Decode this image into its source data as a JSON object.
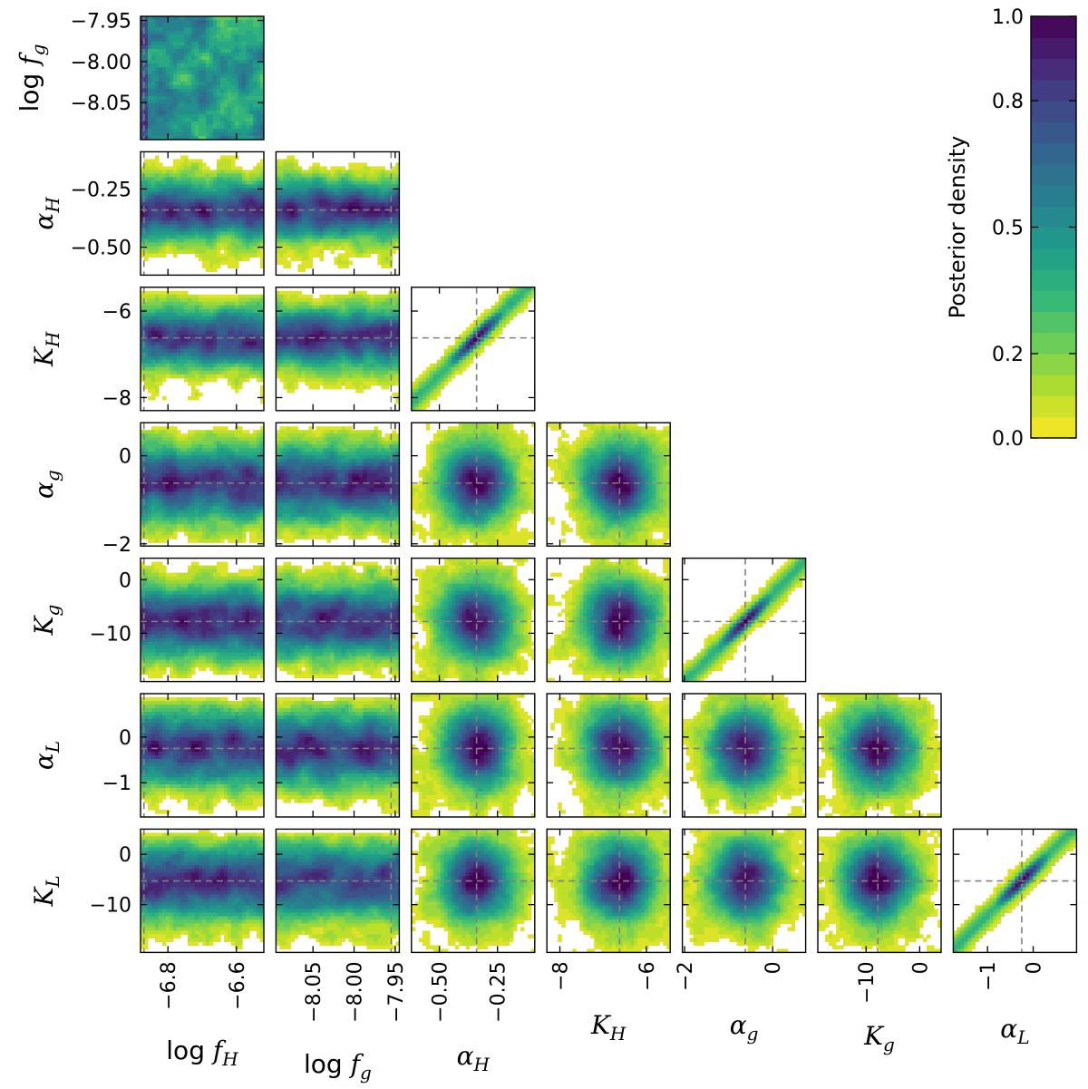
{
  "chart_data": {
    "type": "heatmap",
    "subtype": "corner-plot",
    "title": "",
    "params": [
      {
        "id": "logfH",
        "label": "log f_H",
        "range": [
          -6.88,
          -6.52
        ],
        "truth": -6.87,
        "ticks": [
          {
            "v": -6.8,
            "t": "−6.8"
          },
          {
            "v": -6.6,
            "t": "−6.6"
          }
        ]
      },
      {
        "id": "logfg",
        "label": "log f_g",
        "range": [
          -8.095,
          -7.945
        ],
        "truth": -7.955,
        "ticks": [
          {
            "v": -8.05,
            "t": "−8.05"
          },
          {
            "v": -8.0,
            "t": "−8.00"
          },
          {
            "v": -7.95,
            "t": "−7.95"
          }
        ]
      },
      {
        "id": "alphaH",
        "label": "α_H",
        "range": [
          -0.62,
          -0.09
        ],
        "truth": -0.34,
        "ticks": [
          {
            "v": -0.5,
            "t": "−0.50"
          },
          {
            "v": -0.25,
            "t": "−0.25"
          }
        ]
      },
      {
        "id": "KH",
        "label": "K_H",
        "range": [
          -8.3,
          -5.45
        ],
        "truth": -6.62,
        "ticks": [
          {
            "v": -8,
            "t": "−8"
          },
          {
            "v": -6,
            "t": "−6"
          }
        ]
      },
      {
        "id": "alphag",
        "label": "α_g",
        "range": [
          -2.05,
          0.75
        ],
        "truth": -0.62,
        "ticks": [
          {
            "v": -2,
            "t": "−2"
          },
          {
            "v": 0,
            "t": "0"
          }
        ]
      },
      {
        "id": "Kg",
        "label": "K_g",
        "range": [
          -19,
          4
        ],
        "truth": -7.8,
        "ticks": [
          {
            "v": -10,
            "t": "−10"
          },
          {
            "v": 0,
            "t": "0"
          }
        ]
      },
      {
        "id": "alphaL",
        "label": "α_L",
        "range": [
          -1.75,
          0.95
        ],
        "truth": -0.25,
        "ticks": [
          {
            "v": -1,
            "t": "−1"
          },
          {
            "v": 0,
            "t": "0"
          }
        ]
      },
      {
        "id": "KL",
        "label": "K_L",
        "range": [
          -19.5,
          5
        ],
        "truth": -5.3,
        "ticks": [
          {
            "v": -10,
            "t": "−10"
          },
          {
            "v": 0,
            "t": "0"
          }
        ]
      }
    ],
    "colorbar": {
      "label": "Posterior density",
      "range": [
        0,
        1
      ],
      "ticks": [
        {
          "v": 0.0,
          "t": "0.0"
        },
        {
          "v": 0.2,
          "t": "0.2"
        },
        {
          "v": 0.5,
          "t": "0.5"
        },
        {
          "v": 0.8,
          "t": "0.8"
        },
        {
          "v": 1.0,
          "t": "1.0"
        }
      ],
      "levels": 20,
      "colormap": "viridis_r"
    },
    "truth_line_color": "#808080"
  }
}
